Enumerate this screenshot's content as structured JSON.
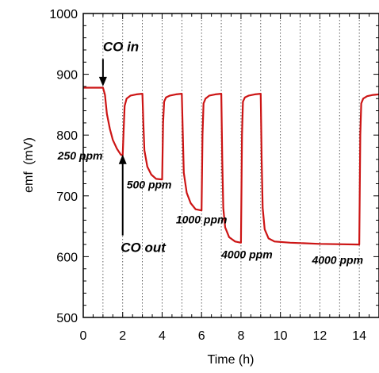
{
  "chart_data": {
    "type": "line",
    "title": "",
    "xlabel": "Time (h)",
    "ylabel_main": "emf",
    "ylabel_unit": "(mV)",
    "xlim": [
      0,
      15
    ],
    "ylim": [
      500,
      1000
    ],
    "x_ticks": [
      "0",
      "2",
      "4",
      "6",
      "8",
      "10",
      "12",
      "14"
    ],
    "x_tick_values": [
      0,
      2,
      4,
      6,
      8,
      10,
      12,
      14
    ],
    "y_ticks": [
      "500",
      "600",
      "700",
      "800",
      "900",
      "1000"
    ],
    "y_tick_values": [
      500,
      600,
      700,
      800,
      900,
      1000
    ],
    "grid": "vertical dotted lines at every x unit",
    "series_color": "#cc1414",
    "annotation_color": "#000000",
    "series": [
      {
        "name": "",
        "x": [
          0,
          1,
          1.1,
          1.2,
          1.35,
          1.5,
          1.7,
          1.9,
          2.0,
          2.05,
          2.1,
          2.2,
          2.4,
          2.7,
          3.0,
          3.05,
          3.1,
          3.25,
          3.45,
          3.7,
          4.0,
          4.05,
          4.1,
          4.2,
          4.4,
          4.7,
          5.0,
          5.05,
          5.1,
          5.25,
          5.45,
          5.7,
          6.0,
          6.05,
          6.1,
          6.2,
          6.4,
          6.7,
          7.0,
          7.05,
          7.1,
          7.2,
          7.4,
          7.7,
          8.0,
          8.05,
          8.1,
          8.2,
          8.4,
          8.7,
          9.0,
          9.05,
          9.1,
          9.2,
          9.4,
          9.7,
          10.5,
          12.0,
          14.0,
          14.05,
          14.1,
          14.2,
          14.4,
          14.7,
          15.0
        ],
        "y": [
          878,
          878,
          866,
          835,
          810,
          792,
          778,
          768,
          766,
          810,
          848,
          860,
          865,
          867,
          868,
          820,
          775,
          748,
          735,
          728,
          727,
          820,
          855,
          862,
          865,
          867,
          868,
          800,
          738,
          705,
          688,
          678,
          676,
          800,
          852,
          860,
          865,
          867,
          868,
          760,
          680,
          648,
          632,
          625,
          623,
          800,
          855,
          862,
          865,
          867,
          868,
          760,
          680,
          645,
          630,
          625,
          623,
          621,
          620,
          800,
          852,
          860,
          864,
          866,
          867
        ]
      }
    ],
    "annotations": [
      {
        "text": "CO in",
        "x": 1.0,
        "y": 938,
        "style": "large"
      },
      {
        "text": "CO out",
        "x": 1.9,
        "y": 608,
        "style": "large"
      },
      {
        "text": "250 ppm",
        "x": -1.3,
        "y": 760,
        "style": "small"
      },
      {
        "text": "500 ppm",
        "x": 2.2,
        "y": 712,
        "style": "small"
      },
      {
        "text": "1000 ppm",
        "x": 4.7,
        "y": 655,
        "style": "small"
      },
      {
        "text": "4000 ppm",
        "x": 7.0,
        "y": 597,
        "style": "small"
      },
      {
        "text": "4000 ppm",
        "x": 11.6,
        "y": 588,
        "style": "small"
      }
    ],
    "arrows": [
      {
        "name": "co-in-arrow",
        "x": 1.0,
        "y_from": 925,
        "y_to": 880
      },
      {
        "name": "co-out-arrow",
        "x": 2.0,
        "y_from": 635,
        "y_to": 768
      }
    ]
  }
}
